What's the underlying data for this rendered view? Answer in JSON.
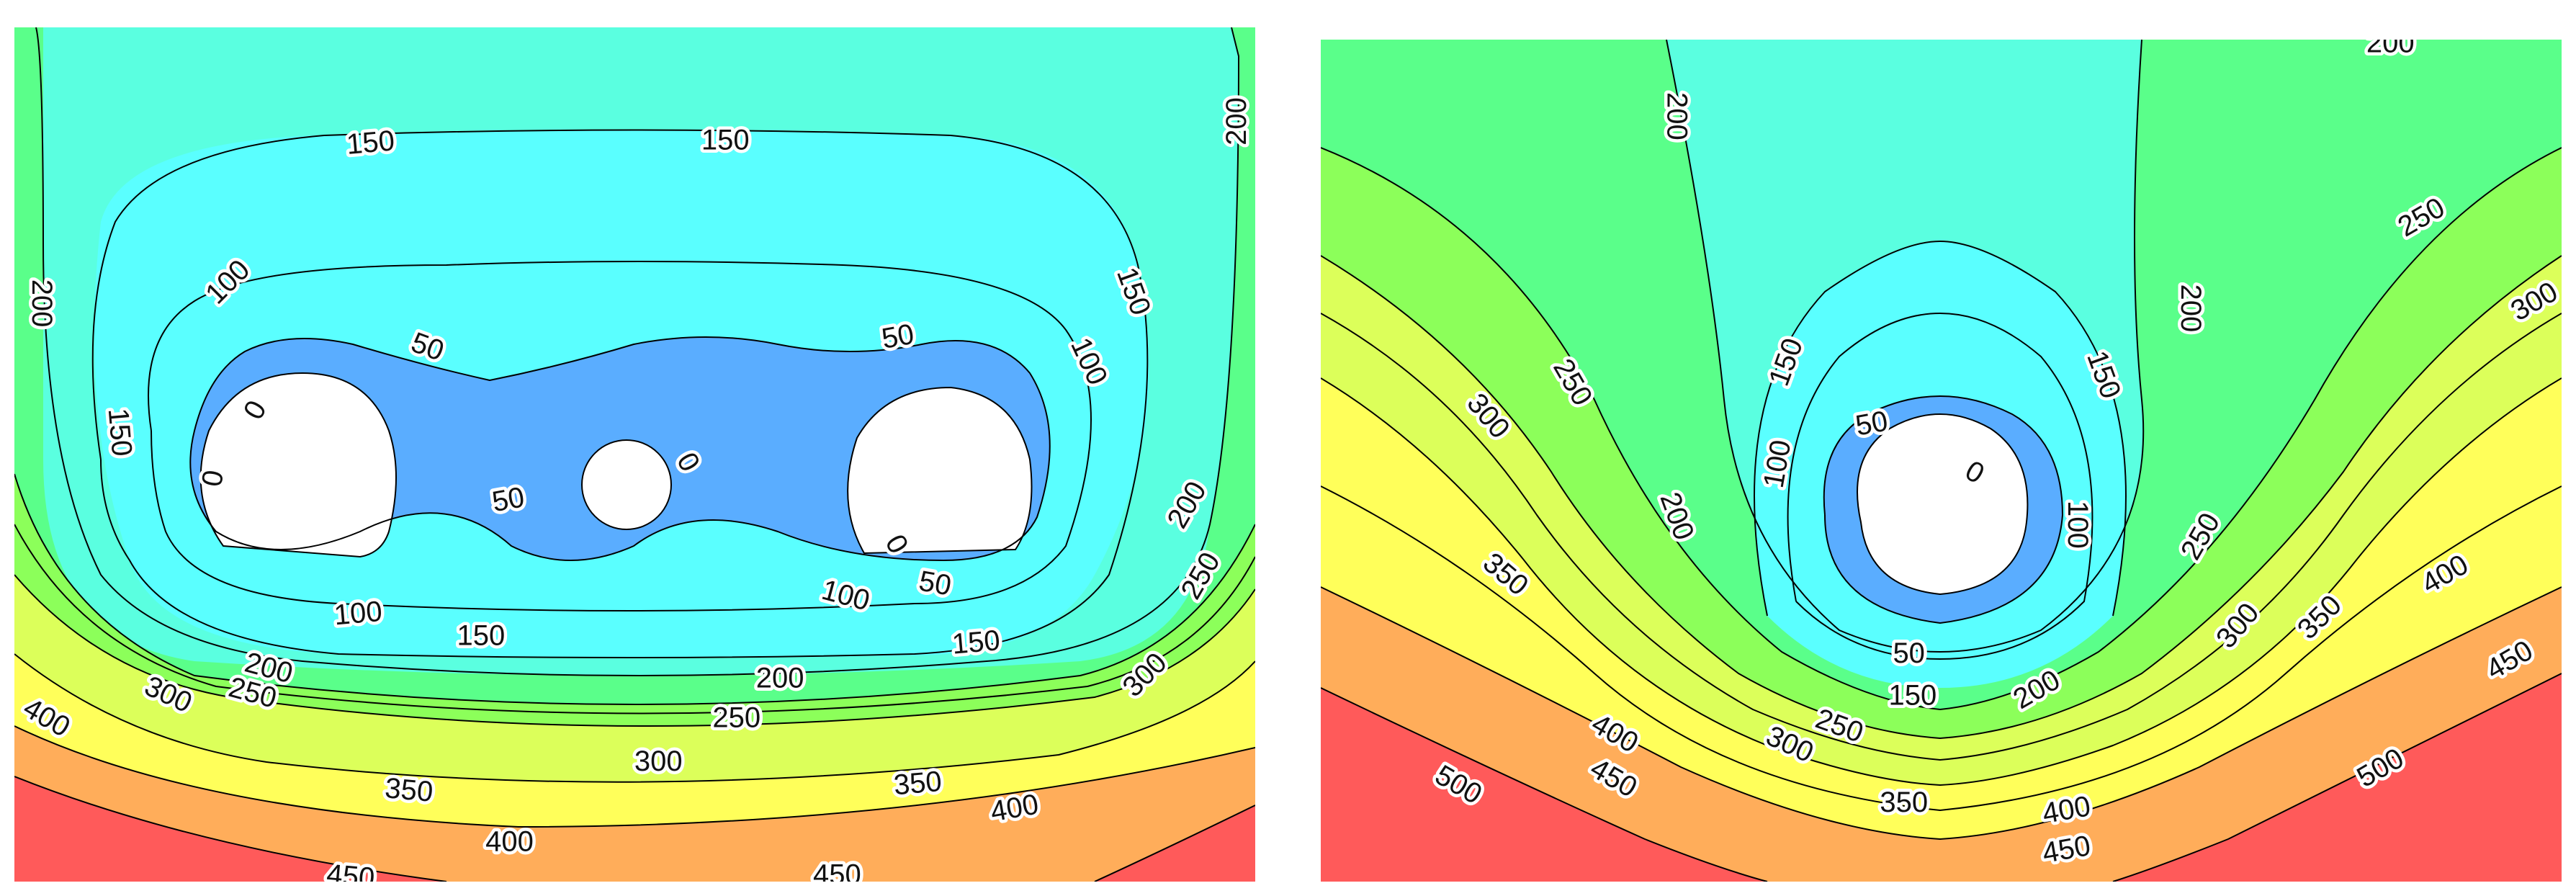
{
  "chart_data": [
    {
      "type": "contour",
      "title": "",
      "xlabel": "",
      "ylabel": "",
      "levels": [
        0,
        50,
        100,
        150,
        200,
        250,
        300,
        350,
        400,
        450,
        500
      ],
      "level_colors": {
        "0": "#ffffff",
        "50": "#5aadff",
        "100": "#5affff",
        "150": "#5affe0",
        "200": "#5aff8a",
        "250": "#8cff5a",
        "300": "#dcff5a",
        "350": "#ffff5a",
        "400": "#ffad5a",
        "450": "#ff5a5a"
      },
      "features": [
        {
          "kind": "hole",
          "center_norm": [
            0.215,
            0.5
          ],
          "level": 0
        },
        {
          "kind": "hole",
          "center_norm": [
            0.505,
            0.53
          ],
          "level": 0
        },
        {
          "kind": "hole",
          "center_norm": [
            0.77,
            0.5
          ],
          "level": 0
        }
      ],
      "contour_labels": [
        {
          "text": "150",
          "x": 0.287,
          "y": 0.135,
          "rot": -5
        },
        {
          "text": "150",
          "x": 0.573,
          "y": 0.132,
          "rot": 0
        },
        {
          "text": "200",
          "x": 0.985,
          "y": 0.11,
          "rot": -90
        },
        {
          "text": "200",
          "x": 0.022,
          "y": 0.323,
          "rot": 90
        },
        {
          "text": "100",
          "x": 0.172,
          "y": 0.298,
          "rot": -45
        },
        {
          "text": "150",
          "x": 0.902,
          "y": 0.309,
          "rot": 70
        },
        {
          "text": "50",
          "x": 0.333,
          "y": 0.374,
          "rot": 20
        },
        {
          "text": "50",
          "x": 0.712,
          "y": 0.362,
          "rot": -10
        },
        {
          "text": "100",
          "x": 0.866,
          "y": 0.391,
          "rot": 65
        },
        {
          "text": "0",
          "x": 0.194,
          "y": 0.448,
          "rot": -60
        },
        {
          "text": "150",
          "x": 0.085,
          "y": 0.474,
          "rot": 85
        },
        {
          "text": "0",
          "x": 0.16,
          "y": 0.528,
          "rot": -80
        },
        {
          "text": "0",
          "x": 0.543,
          "y": 0.509,
          "rot": 60
        },
        {
          "text": "50",
          "x": 0.398,
          "y": 0.553,
          "rot": -10
        },
        {
          "text": "200",
          "x": 0.945,
          "y": 0.559,
          "rot": -60
        },
        {
          "text": "0",
          "x": 0.711,
          "y": 0.605,
          "rot": 60
        },
        {
          "text": "250",
          "x": 0.956,
          "y": 0.642,
          "rot": -60
        },
        {
          "text": "50",
          "x": 0.742,
          "y": 0.651,
          "rot": 10
        },
        {
          "text": "100",
          "x": 0.67,
          "y": 0.665,
          "rot": 15
        },
        {
          "text": "100",
          "x": 0.277,
          "y": 0.686,
          "rot": -5
        },
        {
          "text": "150",
          "x": 0.376,
          "y": 0.712,
          "rot": 0
        },
        {
          "text": "150",
          "x": 0.775,
          "y": 0.72,
          "rot": -5
        },
        {
          "text": "200",
          "x": 0.205,
          "y": 0.75,
          "rot": 15
        },
        {
          "text": "250",
          "x": 0.192,
          "y": 0.779,
          "rot": 15
        },
        {
          "text": "300",
          "x": 0.911,
          "y": 0.758,
          "rot": -45
        },
        {
          "text": "300",
          "x": 0.124,
          "y": 0.781,
          "rot": 25
        },
        {
          "text": "200",
          "x": 0.617,
          "y": 0.762,
          "rot": 0
        },
        {
          "text": "400",
          "x": 0.026,
          "y": 0.808,
          "rot": 30
        },
        {
          "text": "250",
          "x": 0.582,
          "y": 0.808,
          "rot": 0
        },
        {
          "text": "300",
          "x": 0.519,
          "y": 0.859,
          "rot": 0
        },
        {
          "text": "350",
          "x": 0.318,
          "y": 0.893,
          "rot": 5
        },
        {
          "text": "350",
          "x": 0.728,
          "y": 0.885,
          "rot": -5
        },
        {
          "text": "400",
          "x": 0.806,
          "y": 0.914,
          "rot": -10
        },
        {
          "text": "400",
          "x": 0.399,
          "y": 0.953,
          "rot": 0
        },
        {
          "text": "450",
          "x": 0.271,
          "y": 0.994,
          "rot": 5
        },
        {
          "text": "450",
          "x": 0.663,
          "y": 0.992,
          "rot": 0
        }
      ]
    },
    {
      "type": "contour",
      "title": "",
      "xlabel": "",
      "ylabel": "",
      "levels": [
        0,
        50,
        100,
        150,
        200,
        250,
        300,
        350,
        400,
        450,
        500
      ],
      "features": [
        {
          "kind": "hole",
          "center_norm": [
            0.505,
            0.67
          ],
          "level": 0
        }
      ],
      "contour_labels": [
        {
          "text": "200",
          "x": 0.862,
          "y": 0.004,
          "rot": 0
        },
        {
          "text": "200",
          "x": 0.287,
          "y": 0.091,
          "rot": 90
        },
        {
          "text": "250",
          "x": 0.887,
          "y": 0.211,
          "rot": -30
        },
        {
          "text": "200",
          "x": 0.701,
          "y": 0.319,
          "rot": 90
        },
        {
          "text": "300",
          "x": 0.978,
          "y": 0.311,
          "rot": -30
        },
        {
          "text": "150",
          "x": 0.375,
          "y": 0.383,
          "rot": -70
        },
        {
          "text": "150",
          "x": 0.631,
          "y": 0.398,
          "rot": 70
        },
        {
          "text": "250",
          "x": 0.203,
          "y": 0.407,
          "rot": 60
        },
        {
          "text": "300",
          "x": 0.135,
          "y": 0.447,
          "rot": 50
        },
        {
          "text": "50",
          "x": 0.444,
          "y": 0.456,
          "rot": -10
        },
        {
          "text": "100",
          "x": 0.368,
          "y": 0.504,
          "rot": -80
        },
        {
          "text": "0",
          "x": 0.527,
          "y": 0.514,
          "rot": 30
        },
        {
          "text": "100",
          "x": 0.61,
          "y": 0.576,
          "rot": 90
        },
        {
          "text": "200",
          "x": 0.287,
          "y": 0.566,
          "rot": 70
        },
        {
          "text": "250",
          "x": 0.709,
          "y": 0.59,
          "rot": -60
        },
        {
          "text": "350",
          "x": 0.149,
          "y": 0.635,
          "rot": 40
        },
        {
          "text": "400",
          "x": 0.906,
          "y": 0.635,
          "rot": -30
        },
        {
          "text": "350",
          "x": 0.805,
          "y": 0.686,
          "rot": -45
        },
        {
          "text": "300",
          "x": 0.739,
          "y": 0.696,
          "rot": -50
        },
        {
          "text": "50",
          "x": 0.474,
          "y": 0.729,
          "rot": 0
        },
        {
          "text": "450",
          "x": 0.958,
          "y": 0.737,
          "rot": -30
        },
        {
          "text": "200",
          "x": 0.577,
          "y": 0.772,
          "rot": -30
        },
        {
          "text": "150",
          "x": 0.477,
          "y": 0.779,
          "rot": 0
        },
        {
          "text": "400",
          "x": 0.237,
          "y": 0.824,
          "rot": 30
        },
        {
          "text": "250",
          "x": 0.418,
          "y": 0.815,
          "rot": 20
        },
        {
          "text": "300",
          "x": 0.378,
          "y": 0.837,
          "rot": 25
        },
        {
          "text": "450",
          "x": 0.236,
          "y": 0.877,
          "rot": 30
        },
        {
          "text": "500",
          "x": 0.111,
          "y": 0.885,
          "rot": 30
        },
        {
          "text": "500",
          "x": 0.854,
          "y": 0.865,
          "rot": -30
        },
        {
          "text": "350",
          "x": 0.47,
          "y": 0.906,
          "rot": 0
        },
        {
          "text": "400",
          "x": 0.601,
          "y": 0.915,
          "rot": -10
        },
        {
          "text": "450",
          "x": 0.601,
          "y": 0.962,
          "rot": -10
        }
      ]
    }
  ]
}
